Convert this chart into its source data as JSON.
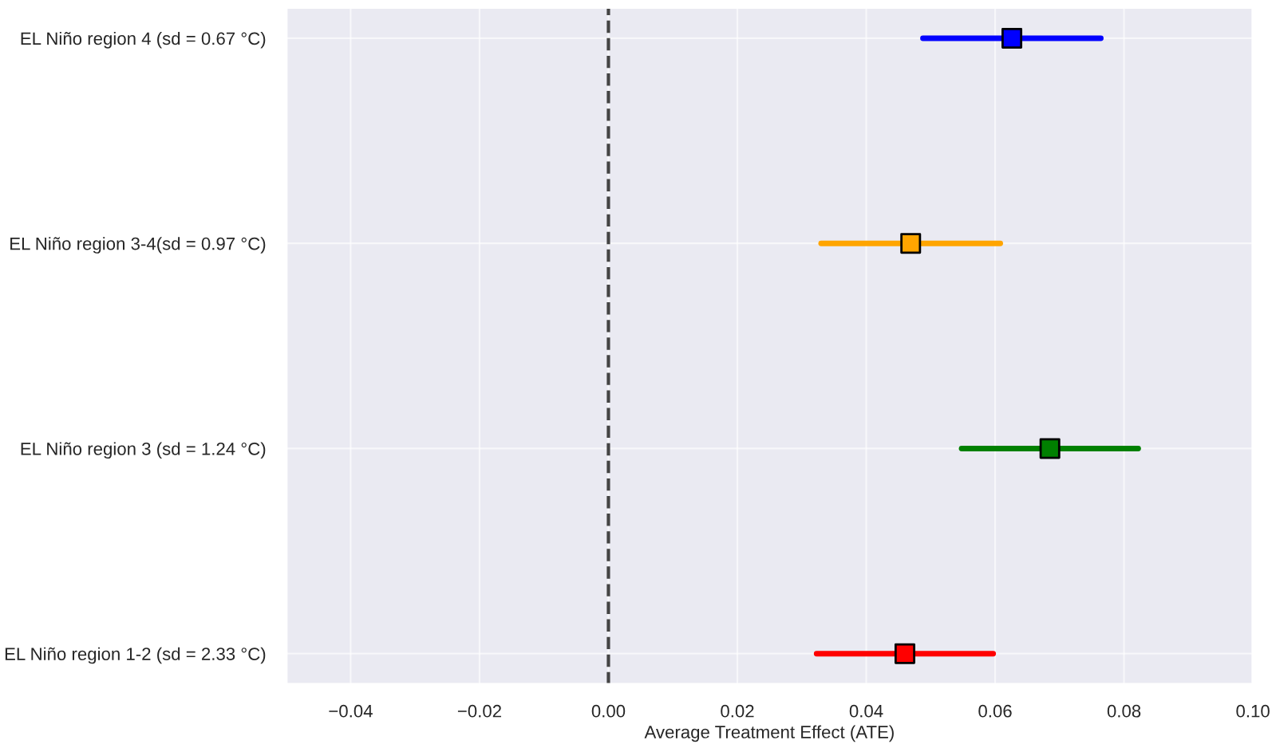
{
  "chart_data": {
    "type": "scatter",
    "orientation": "horizontal",
    "xlabel": "Average Treatment Effect (ATE)",
    "categories": [
      "EL Niño region 4 (sd = 0.67 °C)",
      "EL Niño region 3-4(sd = 0.97 °C)",
      "EL Niño region 3 (sd = 1.24 °C)",
      "EL Niño region 1-2 (sd = 2.33 °C)"
    ],
    "values": [
      0.0626,
      0.0469,
      0.0685,
      0.046
    ],
    "errors": [
      0.0138,
      0.0139,
      0.0137,
      0.0137
    ],
    "colors": [
      "#0000ff",
      "#ffa500",
      "#008000",
      "#ff0000"
    ],
    "marker": "square",
    "xlim": [
      -0.05,
      0.1
    ],
    "xticks": [
      {
        "value": -0.04,
        "label": "−0.04"
      },
      {
        "value": -0.02,
        "label": "−0.02"
      },
      {
        "value": 0.0,
        "label": "0.00"
      },
      {
        "value": 0.02,
        "label": "0.02"
      },
      {
        "value": 0.04,
        "label": "0.04"
      },
      {
        "value": 0.06,
        "label": "0.06"
      },
      {
        "value": 0.08,
        "label": "0.08"
      },
      {
        "value": 0.1,
        "label": "0.10"
      }
    ],
    "ref_lines": [
      {
        "axis": "x",
        "value": 0,
        "color": "#444444",
        "line_style": "dashed"
      }
    ],
    "grid": true
  }
}
